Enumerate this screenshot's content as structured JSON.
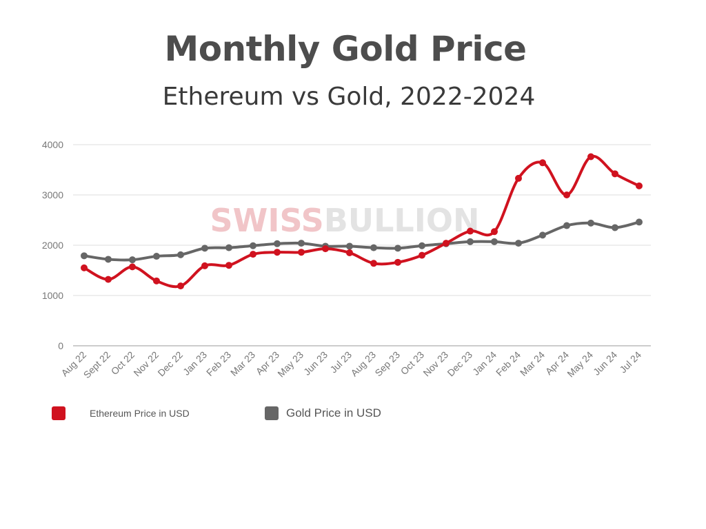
{
  "title": "Monthly Gold Price",
  "subtitle": "Ethereum vs Gold, 2022-2024",
  "watermark": {
    "part1": "SWISS",
    "part2": "BULLION",
    "color1": "#f1c5c8",
    "color2": "#e3e3e3"
  },
  "legend": {
    "eth_label": "Ethereum Price in USD",
    "gold_label": "Gold Price in USD"
  },
  "chart_data": {
    "type": "line",
    "categories": [
      "Aug 22",
      "Sept 22",
      "Oct 22",
      "Nov 22",
      "Dec 22",
      "Jan 23",
      "Feb 23",
      "Mar 23",
      "Apr 23",
      "May 23",
      "Jun 23",
      "Jul 23",
      "Aug 23",
      "Sep 23",
      "Oct 23",
      "Nov 23",
      "Dec 23",
      "Jan 24",
      "Feb 24",
      "Mar 24",
      "Apr 24",
      "May 24",
      "Jun 24",
      "Jul 24"
    ],
    "series": [
      {
        "name": "Ethereum Price in USD",
        "color": "#d0121f",
        "values": [
          1550,
          1320,
          1570,
          1290,
          1190,
          1590,
          1600,
          1820,
          1860,
          1860,
          1930,
          1850,
          1640,
          1660,
          1800,
          2040,
          2280,
          2270,
          3330,
          3640,
          3000,
          3760,
          3420,
          3180
        ]
      },
      {
        "name": "Gold Price in USD",
        "color": "#666666",
        "values": [
          1790,
          1720,
          1710,
          1780,
          1810,
          1940,
          1950,
          1990,
          2030,
          2040,
          1980,
          1980,
          1950,
          1940,
          1990,
          2030,
          2070,
          2070,
          2040,
          2200,
          2390,
          2440,
          2350,
          2460
        ]
      }
    ],
    "ylim": [
      0,
      4000
    ],
    "yticks": [
      0,
      1000,
      2000,
      3000,
      4000
    ],
    "grid": true,
    "legend_position": "bottom-left"
  }
}
